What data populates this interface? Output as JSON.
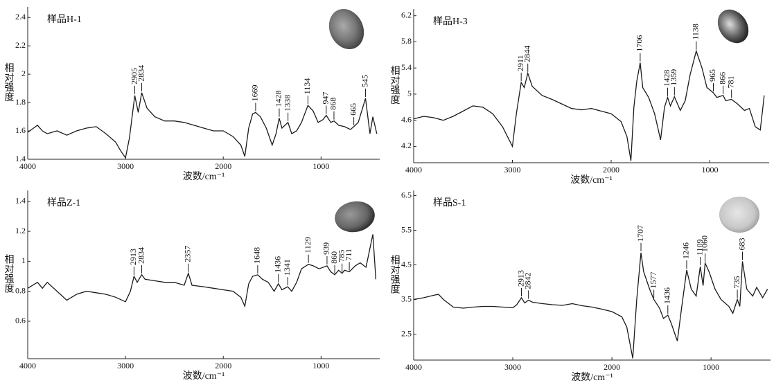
{
  "chart_data": [
    {
      "type": "line",
      "title": "样品H-1",
      "x_label": "波数/cm⁻¹",
      "y_label": "相对强度",
      "color": "#1a1a1a",
      "xlim": [
        4000,
        400
      ],
      "xticks": [
        4000,
        3000,
        2000,
        1000
      ],
      "ylim": [
        1.4,
        2.45
      ],
      "yticks": [
        1.4,
        1.6,
        1.8,
        2.0,
        2.2,
        2.4
      ],
      "x": [
        4000,
        3900,
        3850,
        3800,
        3700,
        3600,
        3500,
        3400,
        3300,
        3200,
        3100,
        3050,
        3000,
        2960,
        2905,
        2870,
        2834,
        2780,
        2700,
        2600,
        2500,
        2400,
        2300,
        2200,
        2100,
        2000,
        1900,
        1820,
        1780,
        1740,
        1700,
        1669,
        1620,
        1560,
        1500,
        1460,
        1428,
        1400,
        1338,
        1300,
        1250,
        1200,
        1134,
        1080,
        1030,
        980,
        947,
        900,
        868,
        820,
        760,
        700,
        665,
        620,
        545,
        500,
        470,
        430
      ],
      "values": [
        1.59,
        1.64,
        1.6,
        1.58,
        1.6,
        1.57,
        1.6,
        1.62,
        1.63,
        1.58,
        1.52,
        1.46,
        1.41,
        1.55,
        1.85,
        1.73,
        1.87,
        1.76,
        1.7,
        1.67,
        1.67,
        1.66,
        1.64,
        1.62,
        1.6,
        1.6,
        1.56,
        1.5,
        1.42,
        1.62,
        1.72,
        1.73,
        1.7,
        1.62,
        1.5,
        1.58,
        1.69,
        1.62,
        1.66,
        1.58,
        1.6,
        1.66,
        1.78,
        1.74,
        1.66,
        1.68,
        1.71,
        1.66,
        1.67,
        1.64,
        1.63,
        1.61,
        1.63,
        1.66,
        1.83,
        1.58,
        1.7,
        1.58
      ],
      "peaks": {
        "x": [
          2905,
          2834,
          1669,
          1428,
          1338,
          1134,
          947,
          868,
          665,
          545
        ],
        "values": [
          1.85,
          1.87,
          1.73,
          1.69,
          1.66,
          1.78,
          1.71,
          1.67,
          1.63,
          1.83
        ]
      }
    },
    {
      "type": "line",
      "title": "样品H-3",
      "x_label": "波数/cm⁻¹",
      "y_label": "相对强度",
      "color": "#1a1a1a",
      "xlim": [
        4000,
        400
      ],
      "xticks": [
        4000,
        3000,
        2000,
        1000
      ],
      "ylim": [
        3.95,
        6.25
      ],
      "yticks": [
        4.2,
        4.6,
        5.0,
        5.4,
        5.8,
        6.2
      ],
      "x": [
        4000,
        3900,
        3800,
        3700,
        3600,
        3500,
        3400,
        3300,
        3200,
        3100,
        3050,
        3000,
        2960,
        2911,
        2880,
        2844,
        2800,
        2700,
        2600,
        2500,
        2400,
        2300,
        2200,
        2100,
        2000,
        1900,
        1840,
        1800,
        1770,
        1740,
        1706,
        1680,
        1620,
        1560,
        1500,
        1460,
        1428,
        1400,
        1359,
        1300,
        1250,
        1200,
        1138,
        1080,
        1030,
        965,
        930,
        866,
        840,
        781,
        720,
        650,
        600,
        540,
        490,
        450
      ],
      "values": [
        4.62,
        4.66,
        4.64,
        4.6,
        4.66,
        4.74,
        4.82,
        4.8,
        4.7,
        4.5,
        4.35,
        4.2,
        4.7,
        5.18,
        5.1,
        5.32,
        5.12,
        4.98,
        4.92,
        4.85,
        4.78,
        4.76,
        4.78,
        4.74,
        4.7,
        4.58,
        4.35,
        3.98,
        4.8,
        5.2,
        5.48,
        5.1,
        4.95,
        4.7,
        4.3,
        4.8,
        4.95,
        4.82,
        4.96,
        4.75,
        4.9,
        5.3,
        5.66,
        5.4,
        5.1,
        5.02,
        4.95,
        4.98,
        4.9,
        4.92,
        4.85,
        4.75,
        4.78,
        4.5,
        4.45,
        4.98
      ],
      "peaks": {
        "x": [
          2911,
          2844,
          1706,
          1428,
          1359,
          1138,
          965,
          866,
          781
        ],
        "values": [
          5.18,
          5.32,
          5.48,
          4.95,
          4.96,
          5.66,
          5.02,
          4.98,
          4.92
        ]
      }
    },
    {
      "type": "line",
      "title": "样品Z-1",
      "x_label": "波数/cm⁻¹",
      "y_label": "相对强度",
      "color": "#1a1a1a",
      "xlim": [
        4000,
        400
      ],
      "xticks": [
        4000,
        3000,
        2000,
        1000
      ],
      "ylim": [
        0.35,
        1.45
      ],
      "yticks": [
        0.6,
        0.8,
        1.0,
        1.2,
        1.4
      ],
      "x": [
        4000,
        3900,
        3850,
        3800,
        3700,
        3600,
        3500,
        3400,
        3300,
        3200,
        3100,
        3000,
        2950,
        2913,
        2880,
        2834,
        2800,
        2700,
        2600,
        2500,
        2400,
        2357,
        2320,
        2200,
        2100,
        2000,
        1900,
        1820,
        1780,
        1740,
        1700,
        1648,
        1600,
        1540,
        1480,
        1436,
        1400,
        1341,
        1300,
        1250,
        1200,
        1129,
        1080,
        1020,
        939,
        900,
        860,
        820,
        785,
        760,
        711,
        650,
        600,
        540,
        470,
        440
      ],
      "values": [
        0.82,
        0.86,
        0.82,
        0.86,
        0.8,
        0.74,
        0.78,
        0.8,
        0.79,
        0.78,
        0.76,
        0.73,
        0.8,
        0.9,
        0.86,
        0.91,
        0.88,
        0.87,
        0.86,
        0.86,
        0.84,
        0.92,
        0.84,
        0.83,
        0.82,
        0.81,
        0.8,
        0.76,
        0.7,
        0.85,
        0.9,
        0.91,
        0.88,
        0.86,
        0.8,
        0.85,
        0.81,
        0.83,
        0.8,
        0.86,
        0.95,
        0.98,
        0.97,
        0.95,
        0.97,
        0.93,
        0.91,
        0.94,
        0.92,
        0.94,
        0.93,
        0.97,
        0.99,
        0.96,
        1.18,
        0.88
      ],
      "peaks": {
        "x": [
          2913,
          2834,
          2357,
          1648,
          1436,
          1341,
          1129,
          939,
          860,
          785,
          711
        ],
        "values": [
          0.9,
          0.91,
          0.92,
          0.91,
          0.85,
          0.83,
          0.98,
          0.97,
          0.91,
          0.92,
          0.93
        ]
      }
    },
    {
      "type": "line",
      "title": "样品S-1",
      "x_label": "波数/cm⁻¹",
      "y_label": "相对强度",
      "color": "#1a1a1a",
      "xlim": [
        4000,
        400
      ],
      "xticks": [
        4000,
        3000,
        2000,
        1000
      ],
      "ylim": [
        1.75,
        6.55
      ],
      "yticks": [
        2.5,
        3.5,
        4.5,
        5.5,
        6.5
      ],
      "x": [
        4000,
        3900,
        3800,
        3750,
        3700,
        3600,
        3500,
        3400,
        3300,
        3200,
        3100,
        3000,
        2960,
        2913,
        2880,
        2842,
        2800,
        2700,
        2600,
        2500,
        2400,
        2300,
        2200,
        2100,
        2000,
        1900,
        1850,
        1790,
        1750,
        1707,
        1680,
        1620,
        1577,
        1520,
        1480,
        1436,
        1400,
        1340,
        1300,
        1246,
        1200,
        1150,
        1109,
        1080,
        1060,
        1020,
        960,
        900,
        820,
        780,
        735,
        710,
        683,
        640,
        580,
        540,
        480,
        430
      ],
      "values": [
        3.5,
        3.55,
        3.62,
        3.65,
        3.5,
        3.28,
        3.25,
        3.28,
        3.3,
        3.3,
        3.28,
        3.26,
        3.35,
        3.55,
        3.4,
        3.48,
        3.42,
        3.38,
        3.35,
        3.33,
        3.38,
        3.32,
        3.28,
        3.22,
        3.15,
        3.0,
        2.7,
        1.8,
        3.5,
        4.85,
        4.3,
        3.8,
        3.5,
        3.25,
        2.95,
        3.05,
        2.8,
        2.3,
        3.2,
        4.35,
        3.8,
        3.6,
        4.45,
        3.9,
        4.55,
        4.3,
        3.8,
        3.5,
        3.3,
        3.1,
        3.5,
        3.3,
        4.6,
        3.8,
        3.6,
        3.85,
        3.55,
        3.8
      ],
      "peaks": {
        "x": [
          2913,
          2842,
          1707,
          1577,
          1436,
          1246,
          1109,
          1060,
          735,
          683
        ],
        "values": [
          3.55,
          3.48,
          4.85,
          3.5,
          3.05,
          4.35,
          4.45,
          4.55,
          3.5,
          4.6
        ]
      }
    }
  ]
}
